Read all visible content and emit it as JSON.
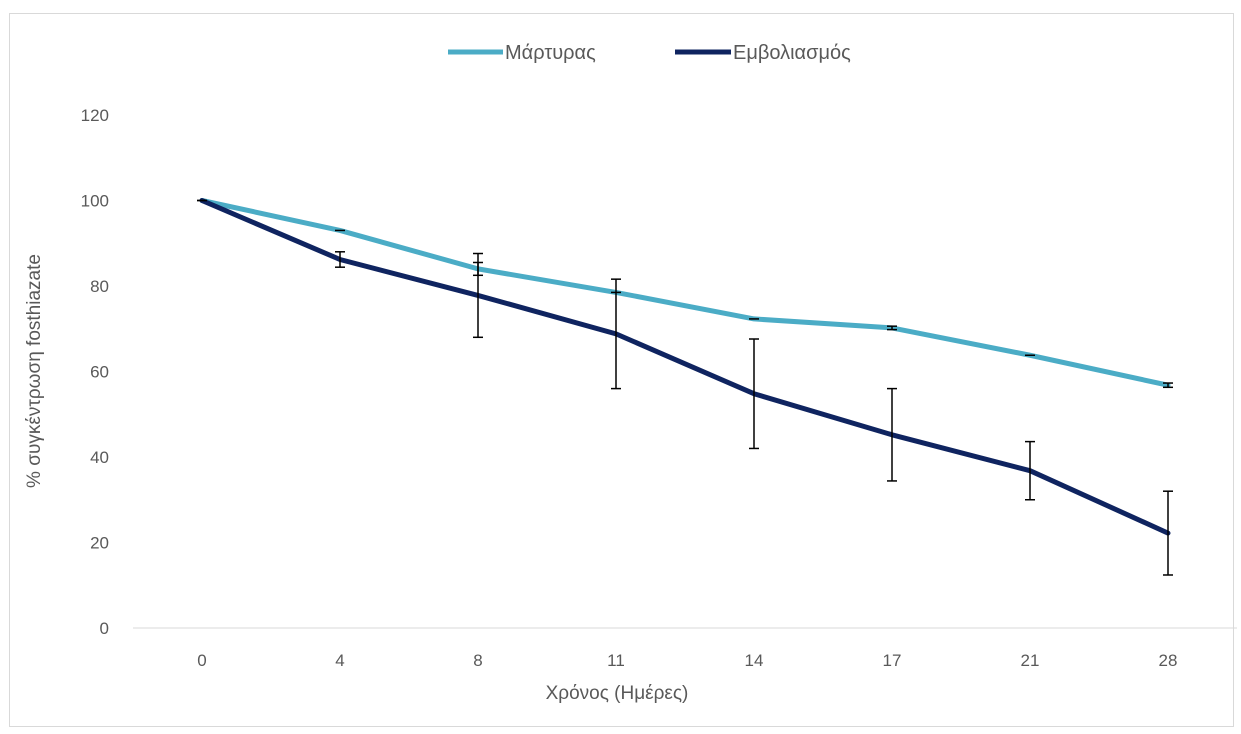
{
  "chart_data": {
    "type": "line",
    "title": "",
    "xlabel": "Χρόνος (Ημέρες)",
    "ylabel": "% συγκέντρωση fosthiazate",
    "categories": [
      "0",
      "4",
      "8",
      "11",
      "14",
      "17",
      "21",
      "28"
    ],
    "ylim": [
      0,
      120
    ],
    "yticks": [
      0,
      20,
      40,
      60,
      80,
      100,
      120
    ],
    "grid": false,
    "legend_position": "top",
    "series": [
      {
        "name": "Μάρτυρας",
        "color": "#4bacc6",
        "values": [
          100,
          93,
          84,
          78.5,
          72.3,
          70.2,
          63.8,
          56.8
        ],
        "error": [
          0,
          0,
          1.5,
          0,
          0,
          0.4,
          0,
          0.5
        ]
      },
      {
        "name": "Εμβολιασμός",
        "color": "#0f2460",
        "values": [
          100,
          86.2,
          77.8,
          68.8,
          54.8,
          45.2,
          36.8,
          22.2
        ],
        "error": [
          0,
          1.8,
          9.8,
          12.8,
          12.8,
          10.8,
          6.8,
          9.8
        ]
      }
    ]
  }
}
